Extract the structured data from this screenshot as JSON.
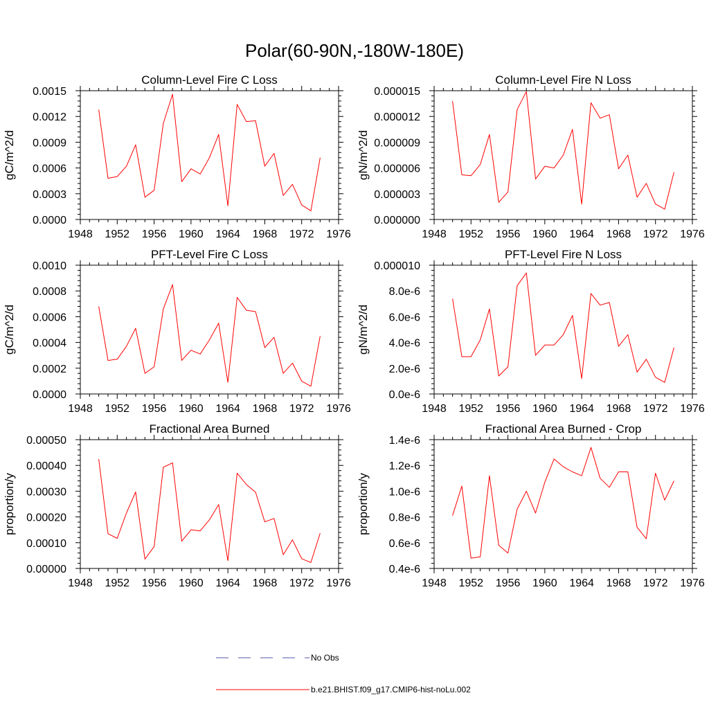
{
  "figure": {
    "title": "Polar(60-90N,-180W-180E)"
  },
  "legend": {
    "items": [
      {
        "label": "No Obs",
        "color": "#5555aa",
        "dashed": true
      },
      {
        "label": "b.e21.BHIST.f09_g17.CMIP6-hist-noLu.002",
        "color": "#ff0000",
        "dashed": false
      }
    ]
  },
  "chart_data": [
    {
      "type": "line",
      "title": "Column-Level Fire C Loss",
      "ylabel": "gC/m^2/d",
      "xlim": [
        1948,
        1976
      ],
      "ylim": [
        0,
        0.0015
      ],
      "xticks": [
        "1948",
        "1952",
        "1956",
        "1960",
        "1964",
        "1968",
        "1972",
        "1976"
      ],
      "yticks": [
        "0.0000",
        "0.0003",
        "0.0006",
        "0.0009",
        "0.0012",
        "0.0015"
      ],
      "series": [
        {
          "color": "#ff0000",
          "x": [
            1950,
            1951,
            1952,
            1953,
            1954,
            1955,
            1956,
            1957,
            1958,
            1959,
            1960,
            1961,
            1962,
            1963,
            1964,
            1965,
            1966,
            1967,
            1968,
            1969,
            1970,
            1971,
            1972,
            1973,
            1974
          ],
          "y": [
            0.00128,
            0.00048,
            0.0005,
            0.00062,
            0.00087,
            0.00026,
            0.00034,
            0.00112,
            0.00146,
            0.00044,
            0.00059,
            0.00053,
            0.00072,
            0.00099,
            0.00016,
            0.00134,
            0.00114,
            0.00115,
            0.00062,
            0.00077,
            0.00028,
            0.00041,
            0.00017,
            0.0001,
            0.00072
          ]
        }
      ]
    },
    {
      "type": "line",
      "title": "Column-Level Fire N Loss",
      "ylabel": "gN/m^2/d",
      "xlim": [
        1948,
        1976
      ],
      "ylim": [
        0,
        1.5e-05
      ],
      "xticks": [
        "1948",
        "1952",
        "1956",
        "1960",
        "1964",
        "1968",
        "1972",
        "1976"
      ],
      "yticks": [
        "0.000000",
        "0.000003",
        "0.000006",
        "0.000009",
        "0.000012",
        "0.000015"
      ],
      "series": [
        {
          "color": "#ff0000",
          "x": [
            1950,
            1951,
            1952,
            1953,
            1954,
            1955,
            1956,
            1957,
            1958,
            1959,
            1960,
            1961,
            1962,
            1963,
            1964,
            1965,
            1966,
            1967,
            1968,
            1969,
            1970,
            1971,
            1972,
            1973,
            1974
          ],
          "y": [
            1.38e-05,
            5.2e-06,
            5.1e-06,
            6.4e-06,
            9.9e-06,
            2e-06,
            3.2e-06,
            1.28e-05,
            1.49e-05,
            4.7e-06,
            6.2e-06,
            6e-06,
            7.5e-06,
            1.05e-05,
            1.8e-06,
            1.36e-05,
            1.18e-05,
            1.22e-05,
            5.9e-06,
            7.5e-06,
            2.6e-06,
            4.2e-06,
            1.8e-06,
            1.2e-06,
            5.5e-06
          ]
        }
      ]
    },
    {
      "type": "line",
      "title": "PFT-Level Fire C Loss",
      "ylabel": "gC/m^2/d",
      "xlim": [
        1948,
        1976
      ],
      "ylim": [
        0,
        0.001
      ],
      "xticks": [
        "1948",
        "1952",
        "1956",
        "1960",
        "1964",
        "1968",
        "1972",
        "1976"
      ],
      "yticks": [
        "0.0000",
        "0.0002",
        "0.0004",
        "0.0006",
        "0.0008",
        "0.0010"
      ],
      "series": [
        {
          "color": "#ff0000",
          "x": [
            1950,
            1951,
            1952,
            1953,
            1954,
            1955,
            1956,
            1957,
            1958,
            1959,
            1960,
            1961,
            1962,
            1963,
            1964,
            1965,
            1966,
            1967,
            1968,
            1969,
            1970,
            1971,
            1972,
            1973,
            1974
          ],
          "y": [
            0.00068,
            0.00026,
            0.00027,
            0.00037,
            0.00051,
            0.00016,
            0.00021,
            0.00066,
            0.00085,
            0.00026,
            0.00034,
            0.00031,
            0.00042,
            0.00055,
            9e-05,
            0.00075,
            0.00065,
            0.00064,
            0.00036,
            0.00044,
            0.00016,
            0.00024,
            0.0001,
            6e-05,
            0.00045
          ]
        }
      ]
    },
    {
      "type": "line",
      "title": "PFT-Level Fire N Loss",
      "ylabel": "gN/m^2/d",
      "xlim": [
        1948,
        1976
      ],
      "ylim": [
        0,
        1e-05
      ],
      "xticks": [
        "1948",
        "1952",
        "1956",
        "1960",
        "1964",
        "1968",
        "1972",
        "1976"
      ],
      "yticks": [
        "0.0e-6",
        "2.0e-6",
        "4.0e-6",
        "6.0e-6",
        "8.0e-6",
        "0.000010"
      ],
      "series": [
        {
          "color": "#ff0000",
          "x": [
            1950,
            1951,
            1952,
            1953,
            1954,
            1955,
            1956,
            1957,
            1958,
            1959,
            1960,
            1961,
            1962,
            1963,
            1964,
            1965,
            1966,
            1967,
            1968,
            1969,
            1970,
            1971,
            1972,
            1973,
            1974
          ],
          "y": [
            7.4e-06,
            2.9e-06,
            2.9e-06,
            4.2e-06,
            6.6e-06,
            1.4e-06,
            2.1e-06,
            8.4e-06,
            9.4e-06,
            3e-06,
            3.8e-06,
            3.8e-06,
            4.6e-06,
            6.1e-06,
            1.2e-06,
            7.8e-06,
            6.9e-06,
            7.1e-06,
            3.7e-06,
            4.6e-06,
            1.7e-06,
            2.7e-06,
            1.3e-06,
            9e-07,
            3.6e-06
          ]
        }
      ]
    },
    {
      "type": "line",
      "title": "Fractional Area Burned",
      "ylabel": "proportion/y",
      "xlim": [
        1948,
        1976
      ],
      "ylim": [
        0,
        0.0005
      ],
      "xticks": [
        "1948",
        "1952",
        "1956",
        "1960",
        "1964",
        "1968",
        "1972",
        "1976"
      ],
      "yticks": [
        "0.00000",
        "0.00010",
        "0.00020",
        "0.00030",
        "0.00040",
        "0.00050"
      ],
      "series": [
        {
          "color": "#ff0000",
          "x": [
            1950,
            1951,
            1952,
            1953,
            1954,
            1955,
            1956,
            1957,
            1958,
            1959,
            1960,
            1961,
            1962,
            1963,
            1964,
            1965,
            1966,
            1967,
            1968,
            1969,
            1970,
            1971,
            1972,
            1973,
            1974
          ],
          "y": [
            0.000425,
            0.000135,
            0.000117,
            0.000215,
            0.000297,
            3.6e-05,
            8.5e-05,
            0.000393,
            0.00041,
            0.000106,
            0.00015,
            0.000146,
            0.000189,
            0.000248,
            3e-05,
            0.00037,
            0.000326,
            0.000296,
            0.000181,
            0.000194,
            5.3e-05,
            0.000111,
            3.8e-05,
            2.3e-05,
            0.000137
          ]
        }
      ]
    },
    {
      "type": "line",
      "title": "Fractional Area Burned - Crop",
      "ylabel": "proportion/y",
      "xlim": [
        1948,
        1976
      ],
      "ylim": [
        4e-07,
        1.4e-06
      ],
      "xticks": [
        "1948",
        "1952",
        "1956",
        "1960",
        "1964",
        "1968",
        "1972",
        "1976"
      ],
      "yticks": [
        "0.4e-6",
        "0.6e-6",
        "0.8e-6",
        "1.0e-6",
        "1.2e-6",
        "1.4e-6"
      ],
      "series": [
        {
          "color": "#ff0000",
          "x": [
            1950,
            1951,
            1952,
            1953,
            1954,
            1955,
            1956,
            1957,
            1958,
            1959,
            1960,
            1961,
            1962,
            1963,
            1964,
            1965,
            1966,
            1967,
            1968,
            1969,
            1970,
            1971,
            1972,
            1973,
            1974
          ],
          "y": [
            8.1e-07,
            1.04e-06,
            4.8e-07,
            4.9e-07,
            1.12e-06,
            5.8e-07,
            5.2e-07,
            8.6e-07,
            1e-06,
            8.3e-07,
            1.07e-06,
            1.25e-06,
            1.19e-06,
            1.15e-06,
            1.12e-06,
            1.34e-06,
            1.1e-06,
            1.03e-06,
            1.15e-06,
            1.15e-06,
            7.2e-07,
            6.3e-07,
            1.14e-06,
            9.3e-07,
            1.08e-06
          ]
        }
      ]
    }
  ]
}
